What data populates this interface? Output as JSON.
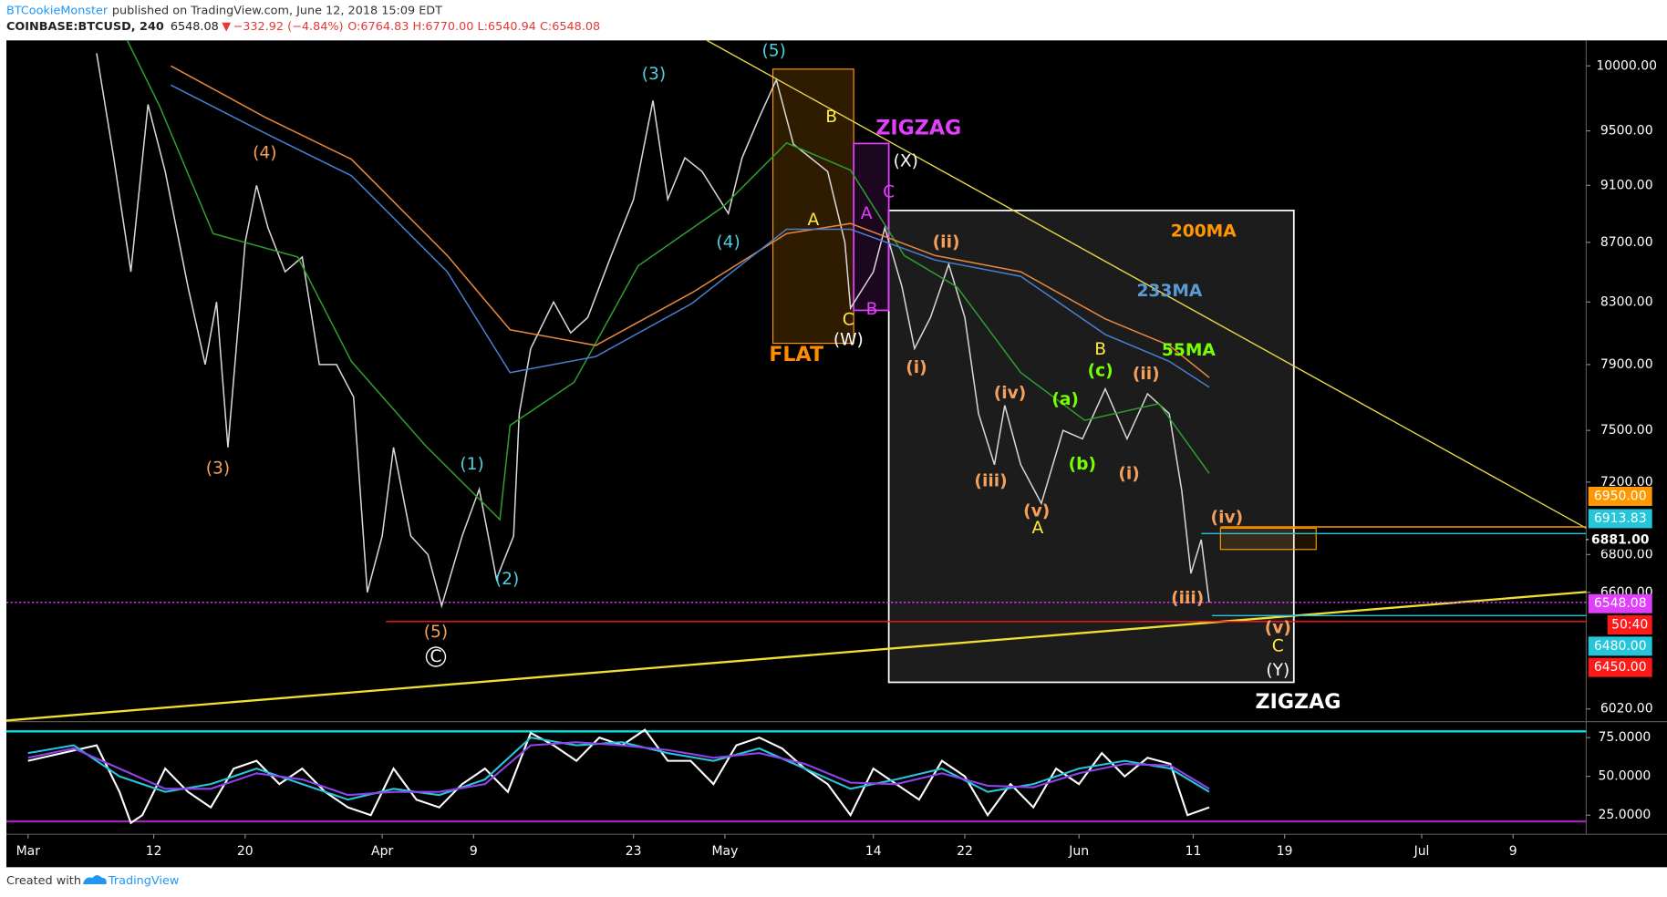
{
  "header": {
    "author": "BTCookieMonster",
    "published": "published on TradingView.com, June 12, 2018 15:09 EDT",
    "symbol": "COINBASE:BTCUSD, 240",
    "last": "6548.08",
    "arrow": "▼",
    "change": "−332.92 (−4.84%)",
    "ohlc": "O:6764.83 H:6770.00 L:6540.94 C:6548.08"
  },
  "footer": {
    "created": "Created with",
    "brand": "TradingView"
  },
  "chart_data": [
    {
      "type": "line",
      "log_scale": true,
      "xlim": [
        -1.9,
        136.4
      ],
      "ylim": [
        5965,
        10203
      ],
      "xticks": [
        {
          "value": 0,
          "label": "Mar"
        },
        {
          "value": 11,
          "label": "12"
        },
        {
          "value": 19,
          "label": "20"
        },
        {
          "value": 31,
          "label": "Apr"
        },
        {
          "value": 39,
          "label": "9"
        },
        {
          "value": 53,
          "label": "23"
        },
        {
          "value": 61,
          "label": "May"
        },
        {
          "value": 74,
          "label": "14"
        },
        {
          "value": 82,
          "label": "22"
        },
        {
          "value": 92,
          "label": "Jun"
        },
        {
          "value": 102,
          "label": "11"
        },
        {
          "value": 110,
          "label": "19"
        },
        {
          "value": 122,
          "label": "Jul"
        },
        {
          "value": 130,
          "label": "9"
        }
      ],
      "yticks": [
        {
          "value": 10000,
          "label": "10000.00"
        },
        {
          "value": 9500,
          "label": "9500.00"
        },
        {
          "value": 9100,
          "label": "9100.00"
        },
        {
          "value": 8700,
          "label": "8700.00"
        },
        {
          "value": 8300,
          "label": "8300.00"
        },
        {
          "value": 7900,
          "label": "7900.00"
        },
        {
          "value": 7500,
          "label": "7500.00"
        },
        {
          "value": 7200,
          "label": "7200.00"
        },
        {
          "value": 6800,
          "label": "6800.00"
        },
        {
          "value": 6600,
          "label": "6600.00"
        },
        {
          "value": 6020,
          "label": "6020.00"
        }
      ],
      "series": [
        {
          "color": "#d8d8d8",
          "x": [
            6,
            7.5,
            9,
            10.5,
            12,
            14,
            15.5,
            16.5,
            17.5,
            19,
            20,
            21,
            22.5,
            24,
            25.5,
            27,
            28.5,
            29.7,
            31,
            32,
            33.5,
            35,
            36.2,
            38,
            39.5,
            41,
            42.5,
            43,
            44,
            46,
            47.5,
            49,
            51,
            53,
            54.7,
            56,
            57.5,
            59,
            61.3,
            62.5,
            64,
            65.5,
            67,
            68.5,
            70,
            71.5,
            72,
            74,
            75,
            76.5,
            77.6,
            79,
            80.6,
            82,
            83.2,
            84.6,
            85.5,
            86.9,
            88.7,
            90.6,
            92.3,
            94.3,
            96.2,
            98,
            99.9,
            101,
            101.8,
            102.7,
            103.4
          ],
          "values": [
            10100,
            9300,
            8500,
            9700,
            9200,
            8400,
            7900,
            8300,
            7400,
            8700,
            9100,
            8800,
            8500,
            8600,
            7900,
            7900,
            7700,
            6600,
            6900,
            7400,
            6900,
            6800,
            6530,
            6900,
            7160,
            6670,
            6900,
            7600,
            8000,
            8300,
            8100,
            8200,
            8600,
            9000,
            9730,
            9000,
            9300,
            9200,
            8900,
            9300,
            9600,
            9890,
            9400,
            9300,
            9200,
            8700,
            8260,
            8500,
            8800,
            8400,
            8000,
            8200,
            8550,
            8200,
            7600,
            7300,
            7650,
            7300,
            7080,
            7500,
            7450,
            7750,
            7450,
            7720,
            7600,
            7150,
            6700,
            6880,
            6548.08
          ]
        },
        {
          "name": "55MA",
          "color": "#2e9e2e",
          "x": [
            8.7,
            11.5,
            16.2,
            23.6,
            28.3,
            34.8,
            41.3,
            42.2,
            47.8,
            53.4,
            60.8,
            66.4,
            72,
            76.7,
            81.3,
            86.9,
            92.5,
            99,
            103.4
          ],
          "values": [
            10200,
            9690,
            8760,
            8600,
            7920,
            7410,
            6990,
            7530,
            7790,
            8540,
            8945,
            9410,
            9210,
            8610,
            8400,
            7850,
            7560,
            7660,
            7250
          ]
        },
        {
          "name": "200MA",
          "color": "#e8873a",
          "x": [
            12.5,
            20.8,
            28.3,
            36.7,
            42.2,
            49.7,
            58.1,
            66.4,
            72,
            79.4,
            86.9,
            94.3,
            99.9,
            103.4
          ],
          "values": [
            10000,
            9600,
            9290,
            8610,
            8120,
            8020,
            8360,
            8760,
            8830,
            8610,
            8500,
            8190,
            8020,
            7820
          ]
        },
        {
          "name": "233MA",
          "color": "#4a7fd0",
          "x": [
            12.5,
            20.8,
            28.3,
            36.7,
            42.2,
            49.7,
            58.1,
            66.4,
            72,
            79.4,
            86.9,
            94.3,
            99.9,
            103.4
          ],
          "values": [
            9850,
            9480,
            9170,
            8500,
            7850,
            7950,
            8290,
            8790,
            8790,
            8580,
            8470,
            8090,
            7920,
            7760
          ]
        }
      ],
      "price_levels": [
        {
          "value": 6950,
          "label": "6950.00",
          "color": "#ff9800"
        },
        {
          "value": 6913.83,
          "label": "6913.83",
          "color": "#26c6da"
        },
        {
          "value": 6881,
          "label": "6881.00",
          "color": "#000000"
        },
        {
          "value": 6548.08,
          "label": "6548.08",
          "color": "#e040fb"
        },
        {
          "value": 6480,
          "label": "6480.00",
          "color": "#26c6da"
        },
        {
          "value": 6450,
          "label": "6450.00",
          "color": "#ff1a1a"
        }
      ],
      "countdown": "50:40",
      "annotations": [
        {
          "text": "(5)",
          "color": "#4dd0e1"
        },
        {
          "text": "(3)",
          "color": "#4dd0e1"
        },
        {
          "text": "B",
          "color": "#ffeb3b"
        },
        {
          "text": "ZIGZAG",
          "color": "#e040fb"
        },
        {
          "text": "(X)",
          "color": "#ffffff"
        },
        {
          "text": "(4)",
          "color": "#f5a05a"
        },
        {
          "text": "C",
          "color": "#e040fb"
        },
        {
          "text": "A",
          "color": "#ffeb3b"
        },
        {
          "text": "A",
          "color": "#e040fb"
        },
        {
          "text": "(ii)",
          "color": "#f5a05a"
        },
        {
          "text": "200MA",
          "color": "#ff9800"
        },
        {
          "text": "(4)",
          "color": "#4dd0e1"
        },
        {
          "text": "233MA",
          "color": "#5b9bd5"
        },
        {
          "text": "B",
          "color": "#e040fb"
        },
        {
          "text": "C",
          "color": "#ffeb3b"
        },
        {
          "text": "(W)",
          "color": "#ffffff"
        },
        {
          "text": "FLAT",
          "color": "#ff8c00"
        },
        {
          "text": "55MA",
          "color": "#76ff03"
        },
        {
          "text": "B",
          "color": "#ffeb3b"
        },
        {
          "text": "(c)",
          "color": "#76ff03"
        },
        {
          "text": "(ii)",
          "color": "#f5a05a"
        },
        {
          "text": "(i)",
          "color": "#f5a05a"
        },
        {
          "text": "(iv)",
          "color": "#f5a05a"
        },
        {
          "text": "(a)",
          "color": "#76ff03"
        },
        {
          "text": "(3)",
          "color": "#f5a05a"
        },
        {
          "text": "(1)",
          "color": "#4dd0e1"
        },
        {
          "text": "(b)",
          "color": "#76ff03"
        },
        {
          "text": "(i)",
          "color": "#f5a05a"
        },
        {
          "text": "(iii)",
          "color": "#f5a05a"
        },
        {
          "text": "(v)",
          "color": "#f5a05a"
        },
        {
          "text": "A",
          "color": "#ffeb3b"
        },
        {
          "text": "(iv)",
          "color": "#f5a05a"
        },
        {
          "text": "(2)",
          "color": "#4dd0e1"
        },
        {
          "text": "(iii)",
          "color": "#f5a05a"
        },
        {
          "text": "(5)",
          "color": "#f5a05a"
        },
        {
          "text": "C",
          "color": "#ffffff"
        },
        {
          "text": "(v)",
          "color": "#f5a05a"
        },
        {
          "text": "C",
          "color": "#ffeb3b"
        },
        {
          "text": "(Y)",
          "color": "#ffffff"
        },
        {
          "text": "ZIGZAG",
          "color": "#ffffff"
        }
      ]
    },
    {
      "type": "line",
      "xlim": [
        -1.9,
        136.4
      ],
      "ylim": [
        12.7,
        84.6
      ],
      "yticks": [
        {
          "value": 75,
          "label": "75.0000"
        },
        {
          "value": 50,
          "label": "50.0000"
        },
        {
          "value": 25,
          "label": "25.0000"
        }
      ],
      "levels": [
        {
          "value": 79,
          "color": "#00e5e5"
        },
        {
          "value": 21,
          "color": "#9c27b0"
        }
      ],
      "series": [
        {
          "color": "#ffffff",
          "x": [
            0,
            3,
            6,
            8,
            9,
            10,
            12,
            14,
            16,
            18,
            20,
            22,
            24,
            26,
            28,
            30,
            32,
            34,
            36,
            38,
            40,
            42,
            44,
            46,
            48,
            50,
            52,
            54,
            56,
            58,
            60,
            62,
            64,
            66,
            68,
            70,
            72,
            74,
            76,
            78,
            80,
            82,
            84,
            86,
            88,
            90,
            92,
            94,
            96,
            98,
            100,
            101.5,
            103.4
          ],
          "values": [
            60,
            65,
            70,
            40,
            20,
            25,
            55,
            40,
            30,
            55,
            60,
            45,
            55,
            40,
            30,
            25,
            55,
            35,
            30,
            45,
            55,
            40,
            78,
            70,
            60,
            75,
            70,
            80,
            60,
            60,
            45,
            70,
            75,
            68,
            55,
            45,
            25,
            55,
            45,
            35,
            60,
            50,
            25,
            45,
            30,
            55,
            45,
            65,
            50,
            62,
            58,
            25,
            30
          ]
        },
        {
          "color": "#26c6da",
          "x": [
            0,
            4,
            8,
            12,
            16,
            20,
            24,
            28,
            32,
            36,
            40,
            44,
            48,
            52,
            56,
            60,
            64,
            68,
            72,
            76,
            80,
            84,
            88,
            92,
            96,
            100,
            103.4
          ],
          "values": [
            65,
            70,
            50,
            40,
            45,
            55,
            45,
            35,
            42,
            38,
            48,
            75,
            70,
            72,
            65,
            60,
            68,
            55,
            42,
            48,
            55,
            40,
            45,
            55,
            60,
            55,
            40
          ]
        },
        {
          "color": "#8e44ec",
          "x": [
            0,
            4,
            8,
            12,
            16,
            20,
            24,
            28,
            32,
            36,
            40,
            44,
            48,
            52,
            56,
            60,
            64,
            68,
            72,
            76,
            80,
            84,
            88,
            92,
            96,
            100,
            103.4
          ],
          "values": [
            62,
            68,
            55,
            42,
            42,
            52,
            48,
            38,
            40,
            40,
            45,
            70,
            72,
            70,
            67,
            62,
            65,
            58,
            46,
            45,
            52,
            44,
            43,
            52,
            58,
            57,
            42
          ]
        }
      ]
    }
  ]
}
